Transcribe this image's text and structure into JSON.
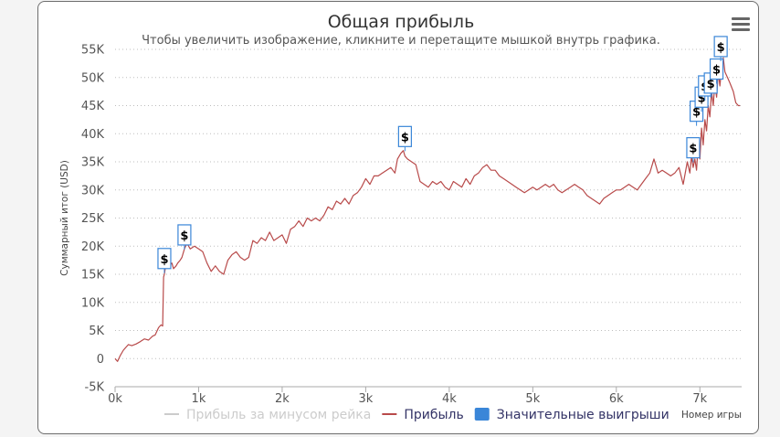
{
  "chart_data": {
    "type": "line",
    "title": "Общая прибыль",
    "subtitle": "Чтобы увеличить изображение, кликните и перетащите мышкой внутрь графика.",
    "xlabel": "Номер игры",
    "ylabel": "Суммарный итог (USD)",
    "xlim": [
      0,
      7500
    ],
    "ylim": [
      -5000,
      55000
    ],
    "x_ticks": [
      "0k",
      "1k",
      "2k",
      "3k",
      "4k",
      "5k",
      "6k",
      "7k"
    ],
    "y_ticks": [
      "-5K",
      "0",
      "5K",
      "10K",
      "15K",
      "20K",
      "25K",
      "30K",
      "35K",
      "40K",
      "45K",
      "50K",
      "55K"
    ],
    "grid": "horizontal dotted",
    "legend_position": "bottom",
    "legend": [
      {
        "name": "Прибыль за минусом рейка",
        "color": "#cccccc",
        "symbol": "line",
        "hidden": true
      },
      {
        "name": "Прибыль",
        "color": "#b84a4a",
        "symbol": "line",
        "hidden": false
      },
      {
        "name": "Значительные выигрыши",
        "color": "#3a86d8",
        "symbol": "square",
        "hidden": false
      }
    ],
    "series": [
      {
        "name": "Прибыль",
        "color": "#b84a4a",
        "x": [
          0,
          30,
          60,
          100,
          130,
          160,
          200,
          250,
          300,
          350,
          400,
          450,
          480,
          520,
          550,
          570,
          580,
          590,
          600,
          620,
          650,
          680,
          700,
          730,
          750,
          780,
          800,
          830,
          860,
          900,
          950,
          1000,
          1050,
          1100,
          1150,
          1200,
          1250,
          1300,
          1350,
          1400,
          1450,
          1500,
          1550,
          1600,
          1650,
          1700,
          1750,
          1800,
          1850,
          1900,
          1950,
          2000,
          2050,
          2100,
          2150,
          2200,
          2250,
          2300,
          2350,
          2400,
          2450,
          2500,
          2550,
          2600,
          2650,
          2700,
          2750,
          2800,
          2850,
          2900,
          2950,
          3000,
          3050,
          3100,
          3150,
          3200,
          3250,
          3300,
          3350,
          3380,
          3420,
          3450,
          3470,
          3500,
          3550,
          3600,
          3650,
          3700,
          3750,
          3800,
          3850,
          3900,
          3950,
          4000,
          4050,
          4100,
          4150,
          4200,
          4250,
          4300,
          4350,
          4400,
          4450,
          4500,
          4550,
          4600,
          4650,
          4700,
          4750,
          4800,
          4850,
          4900,
          4950,
          5000,
          5050,
          5100,
          5150,
          5200,
          5250,
          5300,
          5350,
          5400,
          5450,
          5500,
          5550,
          5600,
          5650,
          5700,
          5750,
          5800,
          5850,
          5900,
          5950,
          6000,
          6050,
          6100,
          6150,
          6200,
          6250,
          6300,
          6350,
          6400,
          6450,
          6500,
          6550,
          6600,
          6650,
          6700,
          6750,
          6800,
          6850,
          6880,
          6900,
          6920,
          6940,
          6960,
          6980,
          7000,
          7020,
          7040,
          7060,
          7080,
          7100,
          7120,
          7140,
          7160,
          7180,
          7200,
          7220,
          7240,
          7260,
          7280,
          7300,
          7330,
          7360,
          7400,
          7430,
          7460,
          7480
        ],
        "values": [
          0,
          -500,
          500,
          1500,
          2000,
          2500,
          2300,
          2600,
          3000,
          3500,
          3300,
          4000,
          4200,
          5500,
          6000,
          5800,
          14500,
          15000,
          16000,
          17500,
          16500,
          17000,
          16000,
          16500,
          17000,
          17500,
          18000,
          19500,
          20500,
          19500,
          20000,
          19500,
          19000,
          17000,
          15500,
          16500,
          15500,
          15000,
          17500,
          18500,
          19000,
          18000,
          17500,
          18000,
          21000,
          20500,
          21500,
          21000,
          22500,
          21000,
          21500,
          22000,
          20500,
          23000,
          23500,
          24500,
          23500,
          25000,
          24500,
          25000,
          24500,
          25500,
          27000,
          26500,
          28000,
          27500,
          28500,
          27500,
          29000,
          29500,
          30500,
          32000,
          31000,
          32500,
          32500,
          33000,
          33500,
          34000,
          33000,
          35500,
          36500,
          37000,
          36000,
          35500,
          35000,
          34500,
          31500,
          31000,
          30500,
          31500,
          31000,
          31500,
          30500,
          30000,
          31500,
          31000,
          30500,
          32000,
          31000,
          32500,
          33000,
          34000,
          34500,
          33500,
          33500,
          32500,
          32000,
          31500,
          31000,
          30500,
          30000,
          29500,
          30000,
          30500,
          30000,
          30500,
          31000,
          30500,
          31000,
          30000,
          29500,
          30000,
          30500,
          31000,
          30500,
          30000,
          29000,
          28500,
          28000,
          27500,
          28500,
          29000,
          29500,
          30000,
          30000,
          30500,
          31000,
          30500,
          30000,
          31000,
          32000,
          33000,
          35500,
          33000,
          33500,
          33000,
          32500,
          33000,
          34000,
          31000,
          35000,
          33000,
          36000,
          34000,
          35500,
          33500,
          38000,
          35500,
          41000,
          38000,
          42500,
          40500,
          45000,
          43000,
          47500,
          45000,
          49000,
          46500,
          51000,
          48500,
          51500,
          53500,
          51000,
          50000,
          49000,
          47500,
          45500,
          45000,
          45000
        ]
      }
    ],
    "markers": {
      "name": "Значительные выигрыши",
      "symbol": "$",
      "points": [
        {
          "x": 590,
          "y": 17800
        },
        {
          "x": 830,
          "y": 22000
        },
        {
          "x": 3470,
          "y": 39500
        },
        {
          "x": 6920,
          "y": 37500
        },
        {
          "x": 6960,
          "y": 44000
        },
        {
          "x": 7020,
          "y": 46500
        },
        {
          "x": 7060,
          "y": 48500
        },
        {
          "x": 7130,
          "y": 49000
        },
        {
          "x": 7200,
          "y": 51500
        },
        {
          "x": 7250,
          "y": 55500
        }
      ]
    }
  },
  "menu_icon": "hamburger-menu-icon"
}
